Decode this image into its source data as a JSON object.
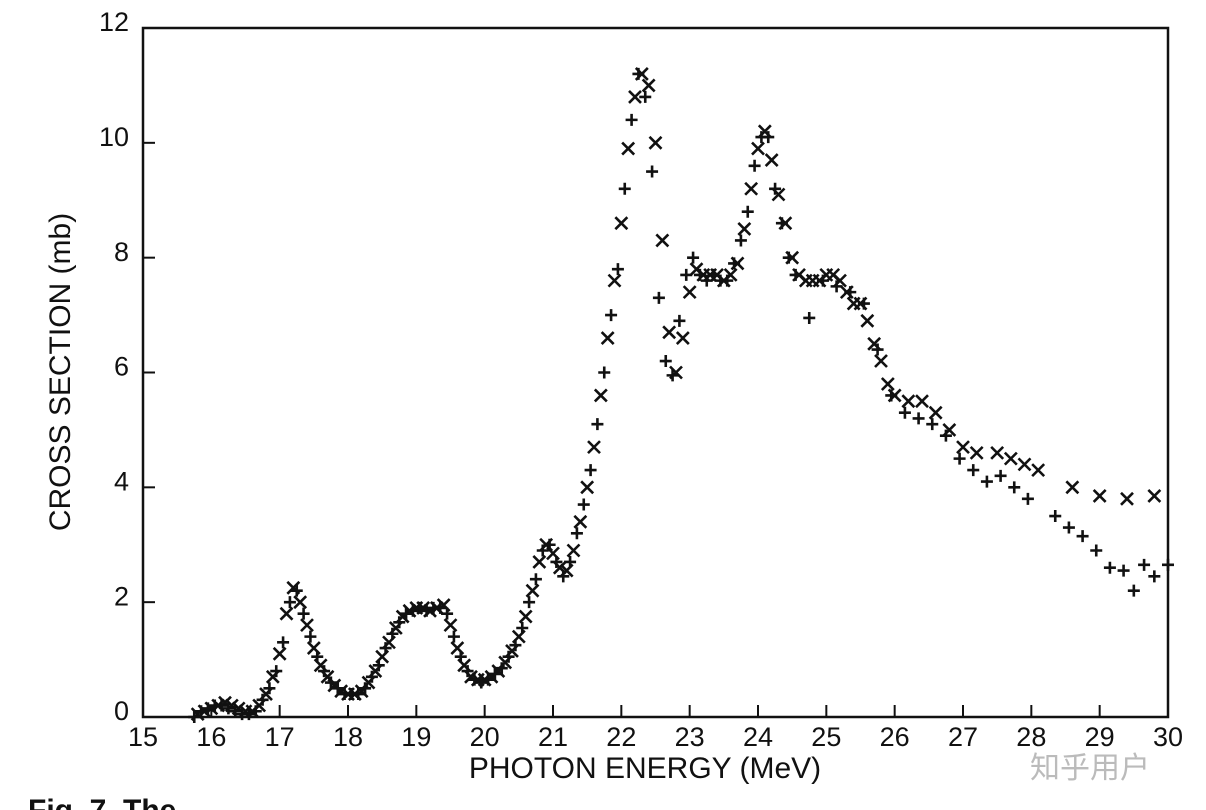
{
  "chart_data": {
    "type": "scatter",
    "xlabel": "PHOTON ENERGY (MeV)",
    "ylabel": "CROSS SECTION (mb)",
    "caption": "Fig. 7. The",
    "watermark": "知乎用户",
    "xlim": [
      15,
      30
    ],
    "xticks": [
      15,
      16,
      17,
      18,
      19,
      20,
      21,
      22,
      23,
      24,
      25,
      26,
      27,
      28,
      29,
      30
    ],
    "ylim": [
      0,
      12
    ],
    "yticks": [
      0,
      2,
      4,
      6,
      8,
      10,
      12
    ],
    "series": [
      {
        "marker": "x",
        "color": "#111111",
        "x": [
          15.8,
          15.9,
          16.0,
          16.1,
          16.2,
          16.3,
          16.4,
          16.5,
          16.6,
          16.7,
          16.8,
          16.9,
          17.0,
          17.1,
          17.2,
          17.3,
          17.4,
          17.5,
          17.6,
          17.7,
          17.8,
          17.9,
          18.0,
          18.1,
          18.2,
          18.3,
          18.4,
          18.5,
          18.6,
          18.7,
          18.8,
          18.9,
          19.0,
          19.1,
          19.2,
          19.3,
          19.4,
          19.5,
          19.6,
          19.7,
          19.8,
          19.9,
          20.0,
          20.1,
          20.2,
          20.3,
          20.4,
          20.5,
          20.6,
          20.7,
          20.8,
          20.9,
          21.0,
          21.1,
          21.2,
          21.3,
          21.4,
          21.5,
          21.6,
          21.7,
          21.8,
          21.9,
          22.0,
          22.1,
          22.2,
          22.3,
          22.4,
          22.5,
          22.6,
          22.7,
          22.8,
          22.9,
          23.0,
          23.1,
          23.2,
          23.3,
          23.4,
          23.5,
          23.6,
          23.7,
          23.8,
          23.9,
          24.0,
          24.1,
          24.2,
          24.3,
          24.4,
          24.5,
          24.6,
          24.7,
          24.8,
          24.9,
          25.0,
          25.1,
          25.2,
          25.3,
          25.4,
          25.5,
          25.6,
          25.7,
          25.8,
          25.9,
          26.0,
          26.2,
          26.4,
          26.6,
          26.8,
          27.0,
          27.2,
          27.5,
          27.7,
          27.9,
          28.1,
          28.6,
          29.0,
          29.4,
          29.8
        ],
        "values": [
          0.05,
          0.1,
          0.15,
          0.2,
          0.25,
          0.2,
          0.15,
          0.1,
          0.1,
          0.2,
          0.4,
          0.7,
          1.1,
          1.8,
          2.25,
          2.0,
          1.6,
          1.2,
          0.9,
          0.7,
          0.55,
          0.45,
          0.4,
          0.4,
          0.45,
          0.6,
          0.8,
          1.05,
          1.3,
          1.55,
          1.75,
          1.85,
          1.9,
          1.9,
          1.85,
          1.9,
          1.95,
          1.6,
          1.2,
          0.9,
          0.7,
          0.65,
          0.65,
          0.7,
          0.8,
          0.95,
          1.15,
          1.4,
          1.75,
          2.2,
          2.7,
          3.0,
          2.85,
          2.6,
          2.55,
          2.9,
          3.4,
          4.0,
          4.7,
          5.6,
          6.6,
          7.6,
          8.6,
          9.9,
          10.8,
          11.2,
          11.0,
          10.0,
          8.3,
          6.7,
          6.0,
          6.6,
          7.4,
          7.8,
          7.7,
          7.7,
          7.7,
          7.6,
          7.7,
          7.9,
          8.5,
          9.2,
          9.9,
          10.2,
          9.7,
          9.1,
          8.6,
          8.0,
          7.7,
          7.6,
          7.6,
          7.6,
          7.7,
          7.7,
          7.6,
          7.4,
          7.2,
          7.2,
          6.9,
          6.5,
          6.2,
          5.8,
          5.6,
          5.5,
          5.5,
          5.3,
          5.0,
          4.7,
          4.6,
          4.6,
          4.5,
          4.4,
          4.3,
          4.0,
          3.85,
          3.8,
          3.85
        ]
      },
      {
        "marker": "+",
        "color": "#111111",
        "x": [
          15.75,
          15.85,
          15.95,
          16.05,
          16.15,
          16.25,
          16.35,
          16.45,
          16.55,
          16.65,
          16.75,
          16.85,
          16.95,
          17.05,
          17.15,
          17.25,
          17.35,
          17.45,
          17.55,
          17.65,
          17.75,
          17.85,
          17.95,
          18.05,
          18.15,
          18.25,
          18.35,
          18.45,
          18.55,
          18.65,
          18.75,
          18.85,
          18.95,
          19.05,
          19.15,
          19.25,
          19.35,
          19.45,
          19.55,
          19.65,
          19.75,
          19.85,
          19.95,
          20.05,
          20.15,
          20.25,
          20.35,
          20.45,
          20.55,
          20.65,
          20.75,
          20.85,
          20.95,
          21.05,
          21.15,
          21.25,
          21.35,
          21.45,
          21.55,
          21.65,
          21.75,
          21.85,
          21.95,
          22.05,
          22.15,
          22.25,
          22.35,
          22.45,
          22.55,
          22.65,
          22.75,
          22.85,
          22.95,
          23.05,
          23.15,
          23.25,
          23.35,
          23.45,
          23.55,
          23.65,
          23.75,
          23.85,
          23.95,
          24.05,
          24.15,
          24.25,
          24.35,
          24.45,
          24.55,
          24.75,
          24.95,
          25.15,
          25.35,
          25.55,
          25.75,
          25.95,
          26.15,
          26.35,
          26.55,
          26.75,
          26.95,
          27.15,
          27.35,
          27.55,
          27.75,
          27.95,
          28.35,
          28.55,
          28.75,
          28.95,
          29.15,
          29.35,
          29.5,
          29.65,
          29.8,
          30.0
        ],
        "values": [
          0,
          0.1,
          0.15,
          0.2,
          0.2,
          0.15,
          0.1,
          0.05,
          0.05,
          0.1,
          0.3,
          0.5,
          0.8,
          1.3,
          2.0,
          2.2,
          1.8,
          1.4,
          1.05,
          0.8,
          0.6,
          0.5,
          0.4,
          0.4,
          0.4,
          0.5,
          0.7,
          0.9,
          1.2,
          1.45,
          1.65,
          1.8,
          1.85,
          1.9,
          1.85,
          1.9,
          1.9,
          1.8,
          1.4,
          1.05,
          0.8,
          0.65,
          0.6,
          0.65,
          0.75,
          0.85,
          1.05,
          1.25,
          1.55,
          2.0,
          2.4,
          2.9,
          3.0,
          2.7,
          2.45,
          2.7,
          3.2,
          3.7,
          4.3,
          5.1,
          6.0,
          7.0,
          7.8,
          9.2,
          10.4,
          11.2,
          10.8,
          9.5,
          7.3,
          6.2,
          5.95,
          6.9,
          7.7,
          8.0,
          7.7,
          7.6,
          7.7,
          7.6,
          7.6,
          7.9,
          8.3,
          8.8,
          9.6,
          10.1,
          10.1,
          9.2,
          8.6,
          8.0,
          7.7,
          6.95,
          7.6,
          7.5,
          7.4,
          7.2,
          6.4,
          5.6,
          5.3,
          5.2,
          5.1,
          4.9,
          4.5,
          4.3,
          4.1,
          4.2,
          4.0,
          3.8,
          3.5,
          3.3,
          3.15,
          2.9,
          2.6,
          2.55,
          2.2,
          2.65,
          2.45,
          2.65
        ]
      }
    ]
  }
}
